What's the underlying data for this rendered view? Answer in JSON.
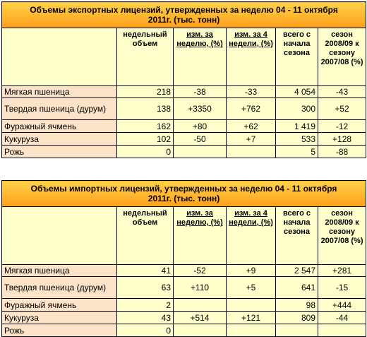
{
  "tables": [
    {
      "title": "Объемы экспортных лицензий, утвержденных за неделю  04 - 11 октября   2011г. (тыс. тонн)",
      "columns": [
        "недельный объем",
        "изм. за неделю, (%)",
        "изм. за 4 недели, (%)",
        "всего с начала сезона",
        "сезон 2008/09 к сезону 2007/08 (%)"
      ],
      "rows": [
        {
          "label": "Мягкая пшеница",
          "values": [
            "218",
            "-38",
            "-33",
            "4 054",
            "-43"
          ]
        },
        {
          "label": "Твердая пшеница (дурум)",
          "values": [
            "138",
            "+3350",
            "+762",
            "300",
            "+52"
          ]
        },
        {
          "label": "Фуражный ячмень",
          "values": [
            "162",
            "+80",
            "+62",
            "1 419",
            "-12"
          ]
        },
        {
          "label": "Кукуруза",
          "values": [
            "102",
            "-50",
            "+7",
            "533",
            "+128"
          ]
        },
        {
          "label": "Рожь",
          "values": [
            "0",
            null,
            null,
            "5",
            "-88"
          ]
        }
      ]
    },
    {
      "title": "Объемы импортных лицензий, утвержденных за неделю  04 - 11 октября 2011г. (тыс. тонн)",
      "columns": [
        "недельный объем",
        "изм. за неделю, (%)",
        "изм. за 4 недели, (%)",
        "всего с начала сезона",
        "сезон 2008/09 к сезону 2007/08 (%)"
      ],
      "rows": [
        {
          "label": "Мягкая пшеница",
          "values": [
            "41",
            "-52",
            "+9",
            "2 547",
            "+281"
          ]
        },
        {
          "label": "Твердая пшеница (дурум)",
          "values": [
            "63",
            "+110",
            "+5",
            "641",
            "-15"
          ]
        },
        {
          "label": "Фуражный ячмень",
          "values": [
            "2",
            null,
            null,
            "98",
            "+444"
          ]
        },
        {
          "label": "Кукуруза",
          "values": [
            "43",
            "+514",
            "+121",
            "809",
            "-44"
          ]
        },
        {
          "label": "Рожь",
          "values": [
            "0",
            null,
            null,
            null,
            null
          ]
        }
      ]
    }
  ]
}
